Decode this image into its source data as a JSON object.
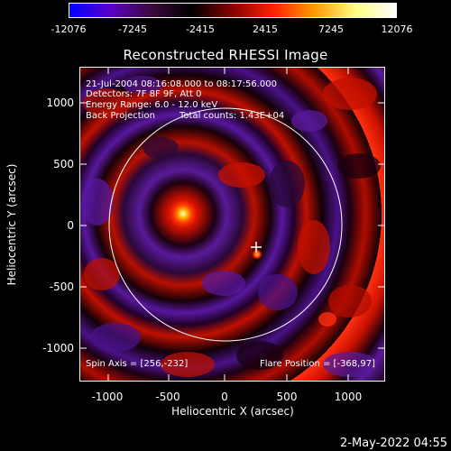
{
  "colorbar": {
    "labels": [
      "-12076",
      "-7245",
      "-2415",
      "2415",
      "7245",
      "12076"
    ],
    "colors": [
      "#0000ff",
      "#5a00c8",
      "#3c0a3c",
      "#000000",
      "#8a0000",
      "#ff2200",
      "#ff9900",
      "#ffff80",
      "#ffffff"
    ]
  },
  "title": "Reconstructed RHESSI Image",
  "info": {
    "line1": "21-Jul-2004 08:16:08.000 to 08:17:56.000",
    "line2": "Detectors: 7F 8F 9F, Att 0",
    "line3": "Energy Range: 6.0 - 12.0 keV",
    "line4_left": "Back Projection",
    "line4_right": "Total counts: 1.43E+04",
    "spin_axis": "Spin Axis = [256,-232]",
    "flare_position": "Flare Position = [-368,97]"
  },
  "axes": {
    "xlabel": "Heliocentric X (arcsec)",
    "ylabel": "Heliocentric Y (arcsec)",
    "xticks": [
      "-1000",
      "-500",
      "0",
      "500",
      "1000"
    ],
    "yticks": [
      "1000",
      "500",
      "0",
      "-500",
      "-1000"
    ]
  },
  "footer_date": "2-May-2022 04:55"
}
